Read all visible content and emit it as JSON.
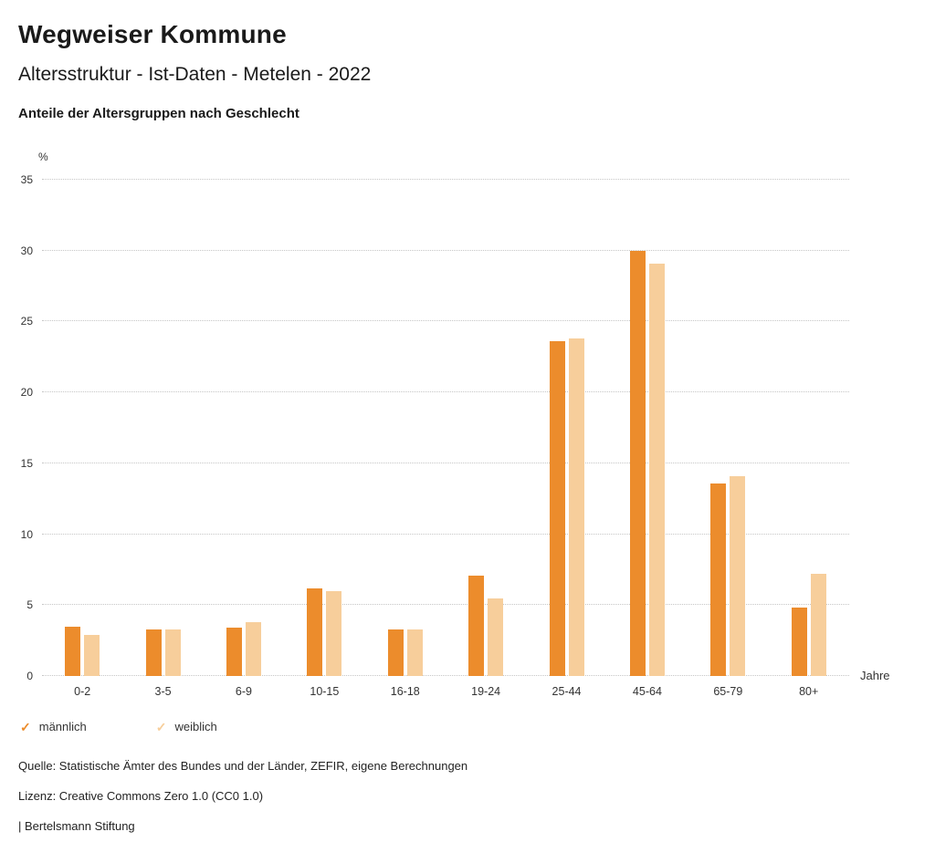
{
  "header": {
    "title": "Wegweiser Kommune",
    "subtitle": "Altersstruktur - Ist-Daten - Metelen - 2022",
    "chart_heading": "Anteile der Altersgruppen nach Geschlecht"
  },
  "chart_data": {
    "type": "bar",
    "categories": [
      "0-2",
      "3-5",
      "6-9",
      "10-15",
      "16-18",
      "19-24",
      "25-44",
      "45-64",
      "65-79",
      "80+"
    ],
    "series": [
      {
        "name": "männlich",
        "color": "#EC8C2C",
        "values": [
          3.5,
          3.3,
          3.4,
          6.2,
          3.3,
          7.1,
          23.6,
          30.0,
          13.6,
          4.8
        ]
      },
      {
        "name": "weiblich",
        "color": "#F7CE9B",
        "values": [
          2.9,
          3.3,
          3.8,
          6.0,
          3.3,
          5.5,
          23.8,
          29.1,
          14.1,
          7.2
        ]
      }
    ],
    "title": "Anteile der Altersgruppen nach Geschlecht",
    "xlabel": "Jahre",
    "ylabel": "%",
    "ylim": [
      0,
      35
    ],
    "ytick_step": 5,
    "grid": "horizontal-dotted",
    "legend_position": "bottom-left"
  },
  "legend": {
    "items": [
      {
        "label": "männlich",
        "color": "#EC8C2C",
        "icon": "check-icon"
      },
      {
        "label": "weiblich",
        "color": "#F7CE9B",
        "icon": "check-icon"
      }
    ]
  },
  "footer": {
    "source": "Quelle: Statistische Ämter des Bundes und der Länder, ZEFIR, eigene Berechnungen",
    "license": "Lizenz: Creative Commons Zero 1.0 (CC0 1.0)",
    "attribution": "| Bertelsmann Stiftung"
  }
}
